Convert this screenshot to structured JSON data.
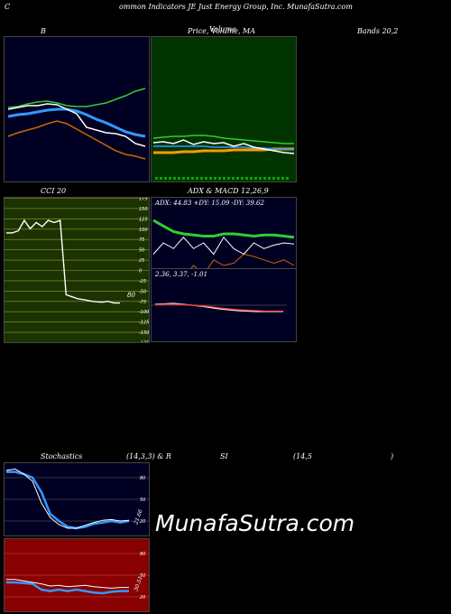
{
  "header": {
    "title": "ommon  Indicators JE Just Energy Group,  Inc. MunafaSutra.com",
    "left_letter": "C"
  },
  "labels": {
    "bb": "B",
    "price": "Price,  Volume,  MA",
    "price_overlap": "Volume",
    "bands": "Bands 20,2",
    "cci": "CCI 20",
    "adx_macd": "ADX  & MACD 12,26,9",
    "adx_values": "ADX: 44.83  +DY: 15.09 -DY: 39.62",
    "macd_values": "2.36,  3.37,  -1.01",
    "cci_value": "80",
    "stoch": "Stochastics",
    "stoch_params": "(14,3,3) & R",
    "si": "SI",
    "rsi_params": "(14,5",
    "rsi_close": ")",
    "stoch_value": "21.66",
    "rsi_value": "30.51"
  },
  "watermark": "MunafaSutra.com",
  "colors": {
    "dark_navy": "#000022",
    "green_panel": "#003300",
    "cci_panel": "#1a3300",
    "rsi_panel": "#880000",
    "blue": "#3399ff",
    "green": "#33cc33",
    "orange": "#cc6600"
  },
  "chart_data": [
    {
      "type": "line",
      "name": "bollinger_bands",
      "series": [
        {
          "color": "#33cc33",
          "values": [
            78,
            77,
            74,
            72,
            71,
            73,
            76,
            77,
            77,
            75,
            73,
            69,
            65,
            60,
            57
          ]
        },
        {
          "color": "#3399ff",
          "values": [
            88,
            86,
            85,
            83,
            81,
            80,
            80,
            82,
            86,
            91,
            95,
            100,
            105,
            108,
            110
          ]
        },
        {
          "color": "#ffffff",
          "values": [
            80,
            78,
            76,
            76,
            74,
            75,
            80,
            85,
            100,
            103,
            106,
            107,
            110,
            118,
            121
          ]
        },
        {
          "color": "#cc6600",
          "values": [
            110,
            106,
            103,
            100,
            96,
            93,
            96,
            102,
            108,
            114,
            120,
            126,
            130,
            132,
            135
          ]
        }
      ]
    },
    {
      "type": "line",
      "name": "price_volume_ma",
      "series": [
        {
          "color": "#ff9900",
          "values": [
            128,
            128,
            128,
            127,
            127,
            126,
            126,
            126,
            125,
            125,
            125,
            125,
            124,
            124,
            124
          ]
        },
        {
          "color": "#3399ff",
          "values": [
            121,
            121,
            121,
            121,
            121,
            121,
            122,
            122,
            122,
            122,
            123,
            123,
            124,
            124,
            125
          ]
        },
        {
          "color": "#ffffff",
          "values": [
            117,
            116,
            118,
            114,
            119,
            116,
            118,
            117,
            121,
            118,
            122,
            124,
            126,
            128,
            129
          ]
        },
        {
          "color": "#33cc33",
          "values": [
            112,
            111,
            110,
            110,
            109,
            109,
            110,
            112,
            113,
            114,
            115,
            116,
            117,
            118,
            118
          ]
        }
      ]
    },
    {
      "type": "line",
      "name": "cci",
      "ticks": [
        "175",
        "150",
        "125",
        "100",
        "75",
        "50",
        "25",
        "0",
        "-25",
        "-50",
        "-75",
        "-100",
        "-125",
        "-150",
        "-175"
      ],
      "values": [
        90,
        90,
        95,
        120,
        100,
        115,
        105,
        120,
        115,
        120,
        -60,
        -65,
        -70,
        -72,
        -75,
        -77,
        -78,
        -76,
        -80,
        -80
      ],
      "ylim": [
        -175,
        175
      ]
    },
    {
      "type": "line",
      "name": "adx",
      "series": [
        {
          "color": "#33cc33",
          "values": [
            60,
            55,
            50,
            48,
            47,
            46,
            46,
            48,
            48,
            47,
            46,
            47,
            47,
            46,
            45
          ]
        },
        {
          "color": "#cc6600",
          "values": [
            10,
            12,
            15,
            10,
            20,
            12,
            25,
            20,
            22,
            30,
            28,
            25,
            22,
            25,
            20
          ]
        },
        {
          "color": "#ffffff",
          "values": [
            30,
            40,
            35,
            45,
            35,
            40,
            30,
            45,
            35,
            30,
            40,
            35,
            38,
            40,
            39
          ]
        }
      ],
      "ylim": [
        0,
        80
      ]
    },
    {
      "type": "line",
      "name": "macd",
      "series": [
        {
          "color": "#ffffff",
          "values": [
            0.2,
            0.3,
            0.4,
            0.2,
            0,
            -0.2,
            -0.5,
            -0.8,
            -1,
            -1.2,
            -1.3,
            -1.4,
            -1.4,
            -1.4,
            -1.4
          ]
        },
        {
          "color": "#ff3333",
          "values": [
            0.1,
            0.2,
            0.2,
            0.1,
            0,
            -0.1,
            -0.3,
            -0.6,
            -0.8,
            -1,
            -1.1,
            -1.2,
            -1.3,
            -1.3,
            -1.3
          ]
        }
      ]
    },
    {
      "type": "line",
      "name": "stochastics",
      "ticks": [
        "80",
        "50",
        "20"
      ],
      "series": [
        {
          "color": "#3399ff",
          "values": [
            88,
            88,
            85,
            80,
            60,
            30,
            20,
            12,
            10,
            12,
            16,
            18,
            20,
            18,
            20
          ]
        },
        {
          "color": "#ffffff",
          "values": [
            90,
            92,
            85,
            75,
            45,
            25,
            15,
            10,
            10,
            14,
            18,
            21,
            22,
            20,
            21
          ]
        }
      ],
      "ylim": [
        0,
        100
      ]
    },
    {
      "type": "line",
      "name": "rsi",
      "ticks": [
        "80",
        "50",
        "20"
      ],
      "series": [
        {
          "color": "#3399ff",
          "values": [
            40,
            40,
            39,
            38,
            30,
            28,
            30,
            28,
            30,
            28,
            26,
            25,
            27,
            28,
            28
          ]
        },
        {
          "color": "#ffffff",
          "values": [
            44,
            44,
            42,
            40,
            38,
            35,
            36,
            34,
            35,
            36,
            34,
            33,
            32,
            33,
            33
          ]
        }
      ],
      "ylim": [
        0,
        100
      ]
    }
  ]
}
